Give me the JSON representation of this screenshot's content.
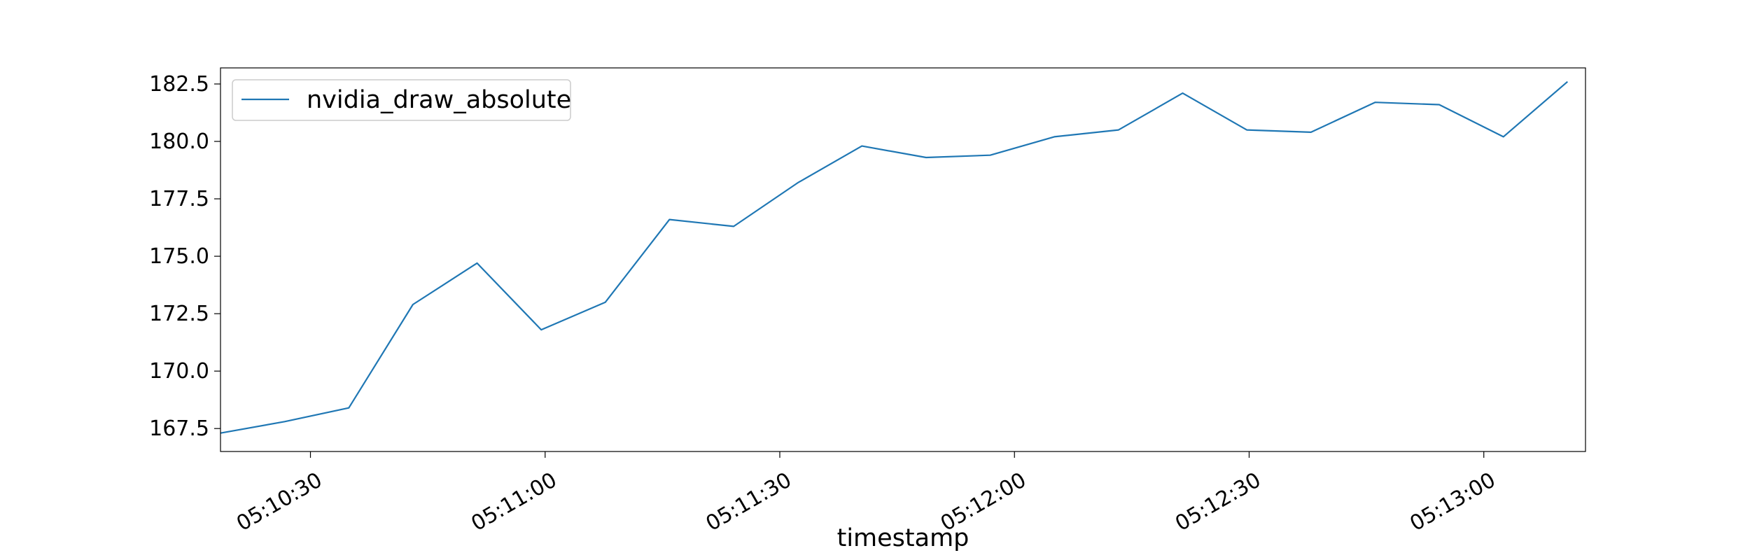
{
  "chart_data": {
    "type": "line",
    "title": "",
    "xlabel": "timestamp",
    "ylabel": "",
    "x_type": "time",
    "x_ticks": [
      "05:10:30",
      "05:11:00",
      "05:11:30",
      "05:12:00",
      "05:12:30",
      "05:13:00"
    ],
    "xlim": [
      "05:10:18.5",
      "05:13:13"
    ],
    "y_ticks": [
      "167.5",
      "170.0",
      "172.5",
      "175.0",
      "177.5",
      "180.0",
      "182.5"
    ],
    "ylim": [
      166.5,
      183.2
    ],
    "grid": false,
    "legend": {
      "position": "top-left",
      "entries": [
        "nvidia_draw_absolute"
      ]
    },
    "series": [
      {
        "name": "nvidia_draw_absolute",
        "color": "#1f77b4",
        "x": [
          "05:10:18.5",
          "05:10:26.7",
          "05:10:34.9",
          "05:10:43.1",
          "05:10:51.3",
          "05:10:59.5",
          "05:11:07.7",
          "05:11:15.9",
          "05:11:24.1",
          "05:11:32.3",
          "05:11:40.5",
          "05:11:48.7",
          "05:11:56.9",
          "05:12:05.1",
          "05:12:13.3",
          "05:12:21.5",
          "05:12:29.7",
          "05:12:37.9",
          "05:12:46.1",
          "05:12:54.3",
          "05:13:02.5",
          "05:13:10.7"
        ],
        "values": [
          167.3,
          167.8,
          168.4,
          172.9,
          174.7,
          171.8,
          173.0,
          176.6,
          176.3,
          178.2,
          179.8,
          179.3,
          179.4,
          180.2,
          180.5,
          182.1,
          180.5,
          180.4,
          181.7,
          181.6,
          180.2,
          182.6
        ]
      }
    ]
  }
}
